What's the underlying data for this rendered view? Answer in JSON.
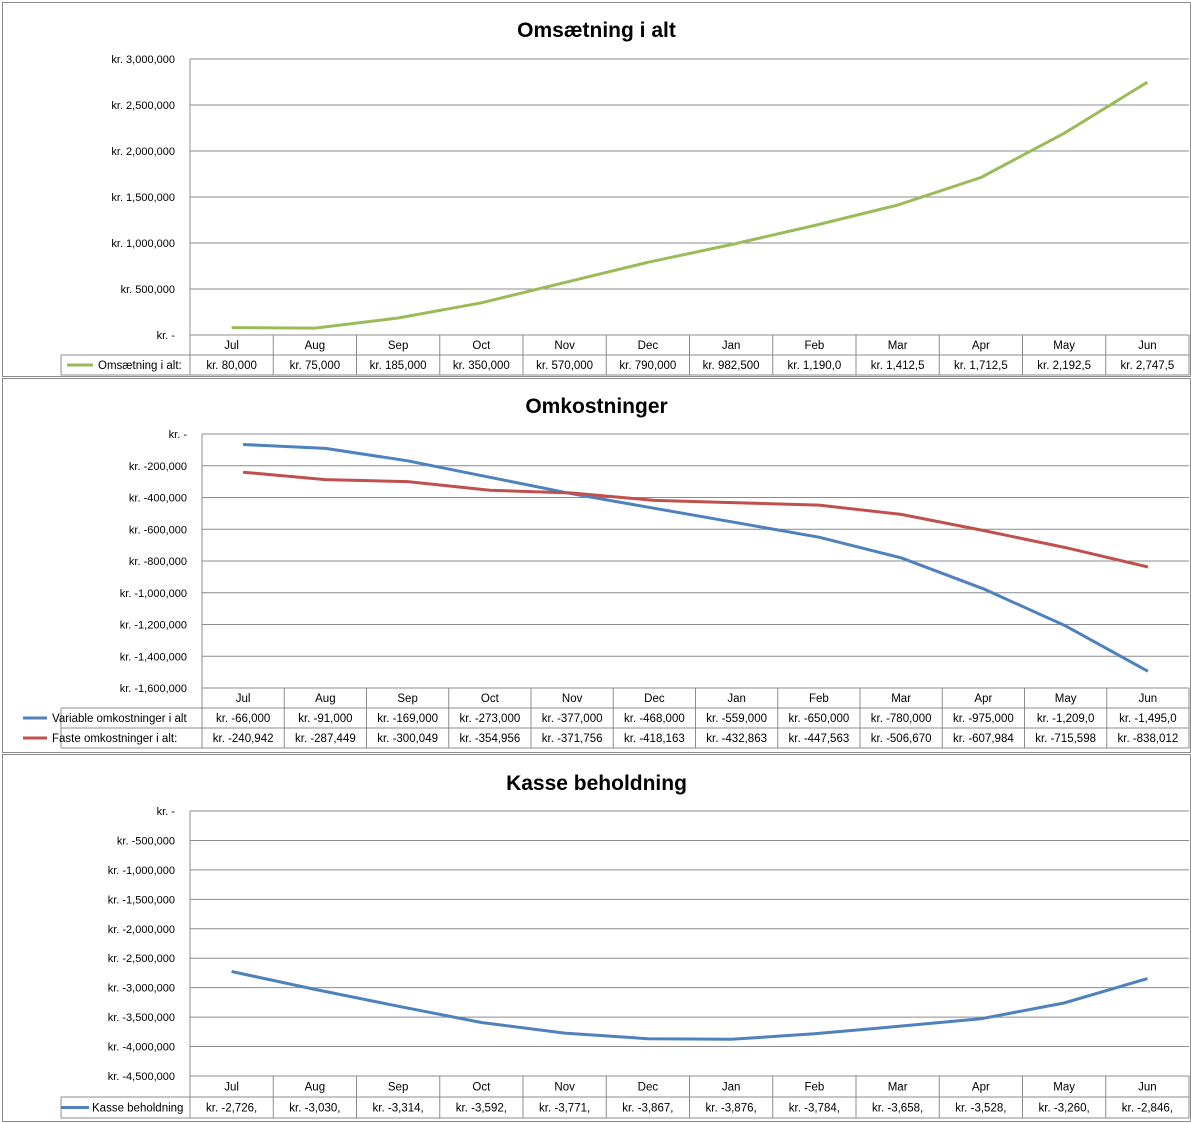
{
  "chart_data": [
    {
      "type": "line",
      "title": "Omsætning i alt",
      "categories": [
        "Jul",
        "Aug",
        "Sep",
        "Oct",
        "Nov",
        "Dec",
        "Jan",
        "Feb",
        "Mar",
        "Apr",
        "May",
        "Jun"
      ],
      "ylim": [
        0,
        3000000
      ],
      "yticks": [
        3000000,
        2500000,
        2000000,
        1500000,
        1000000,
        500000,
        0
      ],
      "ytick_labels": [
        "kr. 3,000,000",
        "kr. 2,500,000",
        "kr. 2,000,000",
        "kr. 1,500,000",
        "kr. 1,000,000",
        "kr. 500,000",
        "kr. -"
      ],
      "grid": true,
      "legend": "data table",
      "series": [
        {
          "name": "Omsætning i alt:",
          "color": "#9bbb59",
          "values": [
            80000,
            75000,
            185000,
            350000,
            570000,
            790000,
            982500,
            1190000,
            1412500,
            1712500,
            2192500,
            2747500
          ],
          "table": [
            "kr. 80,000",
            "kr. 75,000",
            "kr. 185,000",
            "kr. 350,000",
            "kr. 570,000",
            "kr. 790,000",
            "kr. 982,500",
            "kr. 1,190,0",
            "kr. 1,412,5",
            "kr. 1,712,5",
            "kr. 2,192,5",
            "kr. 2,747,5"
          ]
        }
      ]
    },
    {
      "type": "line",
      "title": "Omkostninger",
      "categories": [
        "Jul",
        "Aug",
        "Sep",
        "Oct",
        "Nov",
        "Dec",
        "Jan",
        "Feb",
        "Mar",
        "Apr",
        "May",
        "Jun"
      ],
      "ylim": [
        -1600000,
        0
      ],
      "yticks": [
        0,
        -200000,
        -400000,
        -600000,
        -800000,
        -1000000,
        -1200000,
        -1400000,
        -1600000
      ],
      "ytick_labels": [
        "kr. -",
        "kr. -200,000",
        "kr. -400,000",
        "kr. -600,000",
        "kr. -800,000",
        "kr. -1,000,000",
        "kr. -1,200,000",
        "kr. -1,400,000",
        "kr. -1,600,000"
      ],
      "grid": true,
      "legend": "data table",
      "series": [
        {
          "name": "Variable omkostninger i alt",
          "color": "#4f81bd",
          "values": [
            -66000,
            -91000,
            -169000,
            -273000,
            -377000,
            -468000,
            -559000,
            -650000,
            -780000,
            -975000,
            -1209000,
            -1495000
          ],
          "table": [
            "kr. -66,000",
            "kr. -91,000",
            "kr. -169,000",
            "kr. -273,000",
            "kr. -377,000",
            "kr. -468,000",
            "kr. -559,000",
            "kr. -650,000",
            "kr. -780,000",
            "kr. -975,000",
            "kr. -1,209,0",
            "kr. -1,495,0"
          ]
        },
        {
          "name": "Faste omkostninger i alt:",
          "color": "#c0504d",
          "values": [
            -240942,
            -287449,
            -300049,
            -354956,
            -371756,
            -418163,
            -432863,
            -447563,
            -506670,
            -607984,
            -715598,
            -838012
          ],
          "table": [
            "kr. -240,942",
            "kr. -287,449",
            "kr. -300,049",
            "kr. -354,956",
            "kr. -371,756",
            "kr. -418,163",
            "kr. -432,863",
            "kr. -447,563",
            "kr. -506,670",
            "kr. -607,984",
            "kr. -715,598",
            "kr. -838,012"
          ]
        }
      ]
    },
    {
      "type": "line",
      "title": "Kasse beholdning",
      "categories": [
        "Jul",
        "Aug",
        "Sep",
        "Oct",
        "Nov",
        "Dec",
        "Jan",
        "Feb",
        "Mar",
        "Apr",
        "May",
        "Jun"
      ],
      "ylim": [
        -4500000,
        0
      ],
      "yticks": [
        0,
        -500000,
        -1000000,
        -1500000,
        -2000000,
        -2500000,
        -3000000,
        -3500000,
        -4000000,
        -4500000
      ],
      "ytick_labels": [
        "kr. -",
        "kr. -500,000",
        "kr. -1,000,000",
        "kr. -1,500,000",
        "kr. -2,000,000",
        "kr. -2,500,000",
        "kr. -3,000,000",
        "kr. -3,500,000",
        "kr. -4,000,000",
        "kr. -4,500,000"
      ],
      "grid": true,
      "legend": "data table",
      "series": [
        {
          "name": "Kasse beholdning",
          "color": "#4f81bd",
          "values": [
            -2726000,
            -3030000,
            -3314000,
            -3592000,
            -3771000,
            -3867000,
            -3876000,
            -3784000,
            -3658000,
            -3528000,
            -3260000,
            -2846000
          ],
          "table": [
            "kr. -2,726,",
            "kr. -3,030,",
            "kr. -3,314,",
            "kr. -3,592,",
            "kr. -3,771,",
            "kr. -3,867,",
            "kr. -3,876,",
            "kr. -3,784,",
            "kr. -3,658,",
            "kr. -3,528,",
            "kr. -3,260,",
            "kr. -2,846,"
          ]
        }
      ]
    }
  ]
}
